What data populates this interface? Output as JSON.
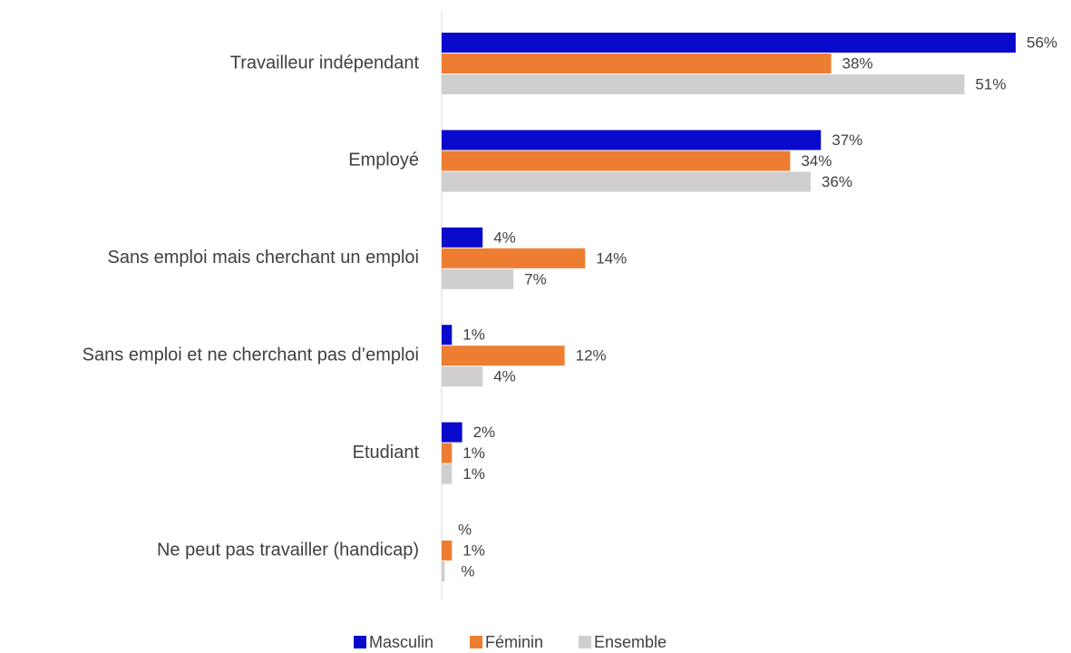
{
  "chart_data": {
    "type": "bar",
    "orientation": "horizontal",
    "categories": [
      "Travailleur indépendant",
      "Employé",
      "Sans emploi mais cherchant un emploi",
      "Sans emploi et ne cherchant pas d’emploi",
      "Etudiant",
      "Ne peut pas travailler (handicap)"
    ],
    "series": [
      {
        "name": "Masculin",
        "color": "#0a0acc",
        "values": [
          56,
          37,
          4,
          1,
          2,
          0
        ],
        "value_labels": [
          "56%",
          "37%",
          "4%",
          "1%",
          "2%",
          "%"
        ]
      },
      {
        "name": "Féminin",
        "color": "#ed7d31",
        "values": [
          38,
          34,
          14,
          12,
          1,
          1
        ],
        "value_labels": [
          "38%",
          "34%",
          "14%",
          "12%",
          "1%",
          "1%"
        ]
      },
      {
        "name": "Ensemble",
        "color": "#d0cece",
        "values": [
          51,
          36,
          7,
          4,
          1,
          0.3
        ],
        "value_labels": [
          "51%",
          "36%",
          "7%",
          "4%",
          "1%",
          "%"
        ]
      }
    ],
    "legend": "bottom"
  }
}
